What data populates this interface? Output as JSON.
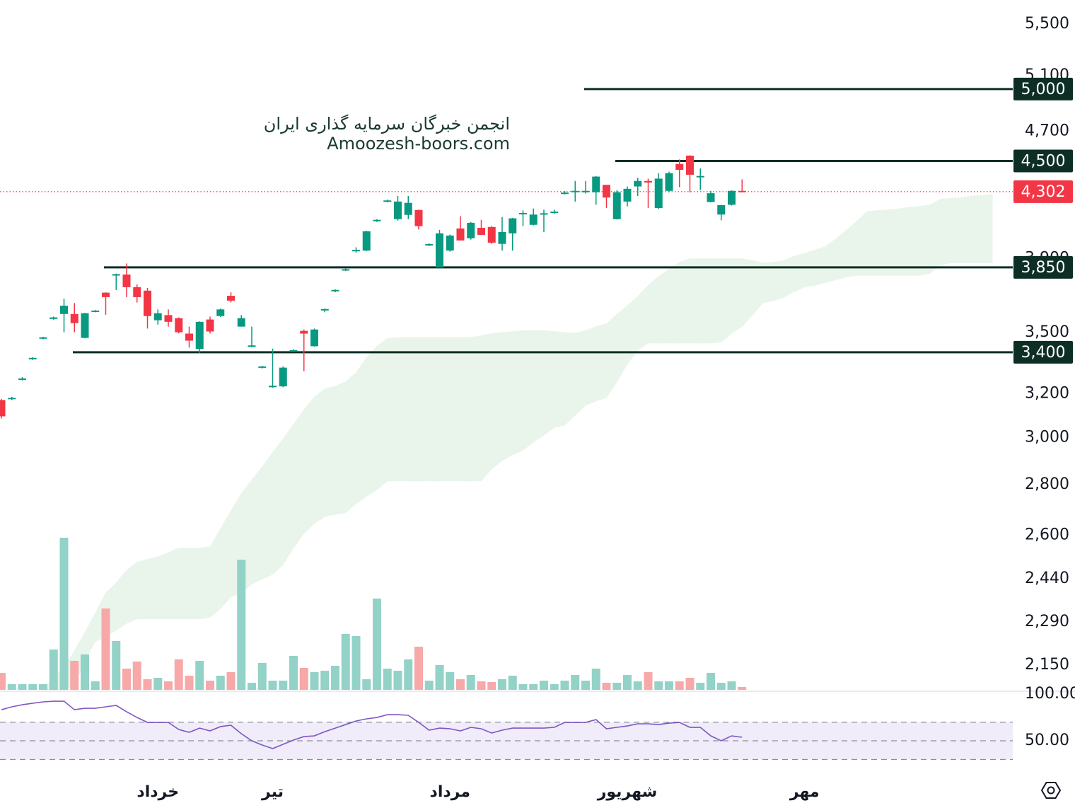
{
  "chart_data": {
    "type": "candlestick",
    "annotations": [
      "انجمن خبرگان سرمایه گذاری ایران",
      "Amoozesh-boors.com"
    ],
    "categories": [
      null,
      null,
      null,
      null,
      null,
      null,
      null,
      null,
      null,
      null,
      null,
      null,
      null,
      null,
      null,
      "خرداد",
      null,
      null,
      null,
      null,
      null,
      null,
      null,
      null,
      null,
      null,
      "تیر",
      null,
      null,
      null,
      null,
      null,
      null,
      null,
      null,
      null,
      null,
      null,
      null,
      null,
      null,
      null,
      null,
      "مرداد",
      null,
      null,
      null,
      null,
      null,
      null,
      null,
      null,
      null,
      null,
      null,
      null,
      null,
      null,
      null,
      null,
      "شهریور",
      null,
      null,
      null,
      null,
      null,
      null,
      null,
      null,
      null,
      null,
      null,
      null,
      null,
      null,
      null,
      null,
      "مهر",
      null,
      null,
      null,
      null,
      null,
      null,
      null,
      null,
      null,
      null,
      null,
      null,
      null,
      null,
      null,
      null,
      null,
      null
    ],
    "open": [
      3170,
      3175,
      3265,
      3365,
      3468,
      3570,
      3596,
      3596,
      3472,
      3608,
      3710,
      3805,
      3810,
      3740,
      3721,
      3563,
      3590,
      3574,
      3494,
      3416,
      3567,
      3585,
      3693,
      3530,
      3428,
      3324,
      3230,
      3234,
      3405,
      3508,
      3430,
      3615,
      3718,
      3834,
      3945,
      3946,
      4120,
      4240,
      4132,
      4158,
      4188,
      3978,
      3850,
      3946,
      4076,
      4018,
      4080,
      4085,
      3985,
      4047,
      4162,
      4098,
      4160,
      4172,
      4290,
      4300,
      4302,
      4298,
      4345,
      4132,
      4240,
      4335,
      4370,
      4200,
      4307,
      4480,
      4535,
      4396,
      4237,
      4160,
      4220,
      4307,
      null,
      null,
      null,
      null,
      null,
      null,
      null,
      null,
      null,
      null,
      null,
      null,
      null,
      null,
      null,
      null,
      null,
      null,
      null,
      null,
      null,
      null,
      null,
      null
    ],
    "high": [
      3175,
      3185,
      3278,
      3376,
      3478,
      3582,
      3678,
      3654,
      3602,
      3617,
      3712,
      3815,
      3872,
      3755,
      3736,
      3620,
      3620,
      3578,
      3530,
      3557,
      3582,
      3625,
      3712,
      3590,
      3530,
      3333,
      3418,
      3330,
      3415,
      3515,
      3520,
      3625,
      3728,
      3845,
      3965,
      4062,
      4132,
      4252,
      4275,
      4275,
      4190,
      3988,
      4068,
      4040,
      4150,
      4115,
      4128,
      4090,
      4145,
      4140,
      4185,
      4197,
      4190,
      4190,
      4305,
      4370,
      4370,
      4402,
      4345,
      4310,
      4335,
      4390,
      4385,
      4420,
      4430,
      4510,
      4538,
      4450,
      4307,
      4220,
      4310,
      4380,
      null,
      null,
      null,
      null,
      null,
      null,
      null,
      null,
      null,
      null,
      null,
      null,
      null,
      null,
      null,
      null,
      null,
      null,
      null,
      null,
      null,
      null,
      null,
      null
    ],
    "low": [
      3085,
      3170,
      3262,
      3362,
      3465,
      3566,
      3501,
      3501,
      3470,
      3605,
      3592,
      3725,
      3686,
      3657,
      3520,
      3540,
      3530,
      3495,
      3423,
      3394,
      3494,
      3580,
      3657,
      3530,
      3425,
      3320,
      3228,
      3230,
      3402,
      3307,
      3428,
      3605,
      3712,
      3830,
      3935,
      3943,
      4115,
      4235,
      4124,
      4132,
      4070,
      3972,
      3850,
      3940,
      4005,
      4010,
      4038,
      3985,
      3946,
      3946,
      4090,
      4095,
      4055,
      4165,
      4285,
      4240,
      4290,
      4220,
      4200,
      4130,
      4210,
      4275,
      4200,
      4195,
      4298,
      4330,
      4298,
      4312,
      4235,
      4125,
      4215,
      4298,
      null,
      null,
      null,
      null,
      null,
      null,
      null,
      null,
      null,
      null,
      null,
      null,
      null,
      null,
      null,
      null,
      null,
      null,
      null,
      null,
      null,
      null,
      null,
      null
    ],
    "close": [
      3095,
      3180,
      3272,
      3372,
      3475,
      3578,
      3640,
      3548,
      3600,
      3614,
      3686,
      3812,
      3740,
      3686,
      3585,
      3600,
      3555,
      3501,
      3458,
      3555,
      3505,
      3620,
      3667,
      3574,
      3434,
      3330,
      3237,
      3324,
      3410,
      3494,
      3515,
      3622,
      3725,
      3840,
      3950,
      4059,
      4128,
      4247,
      4240,
      4232,
      4090,
      3984,
      4047,
      4034,
      4005,
      4110,
      4038,
      3992,
      4055,
      4137,
      4170,
      4160,
      4168,
      4178,
      4296,
      4307,
      4307,
      4398,
      4265,
      4298,
      4320,
      4370,
      4360,
      4385,
      4420,
      4442,
      4410,
      4402,
      4292,
      4218,
      4307,
      4302,
      null,
      null,
      null,
      null,
      null,
      null,
      null,
      null,
      null,
      null,
      null,
      null,
      null,
      null,
      null,
      null,
      null,
      null,
      null,
      null,
      null,
      null,
      null,
      null
    ],
    "volume": [
      24,
      8,
      8,
      8,
      8,
      57,
      215,
      41,
      50,
      12,
      115,
      69,
      30,
      40,
      15,
      17,
      12,
      43,
      20,
      41,
      13,
      20,
      25,
      184,
      10,
      38,
      13,
      13,
      48,
      31,
      25,
      27,
      34,
      79,
      76,
      15,
      129,
      30,
      27,
      43,
      61,
      13,
      35,
      25,
      15,
      21,
      12,
      11,
      15,
      20,
      8,
      8,
      13,
      8,
      13,
      21,
      13,
      30,
      10,
      10,
      21,
      12,
      25,
      12,
      12,
      12,
      17,
      10,
      24,
      10,
      12,
      4,
      null,
      null,
      null,
      null,
      null,
      null,
      null,
      null,
      null,
      null,
      null,
      null,
      null,
      null,
      null,
      null,
      null,
      null,
      null,
      null,
      null,
      null,
      null,
      null
    ],
    "cloud_upper": [
      null,
      null,
      null,
      null,
      2073,
      2110,
      2140,
      2195,
      2255,
      2320,
      2390,
      2425,
      2470,
      2500,
      2510,
      2520,
      2535,
      2552,
      2552,
      2552,
      2557,
      2625,
      2695,
      2765,
      2820,
      2875,
      2935,
      2995,
      3059,
      3125,
      3185,
      3222,
      3235,
      3256,
      3300,
      3375,
      3430,
      3470,
      3475,
      3475,
      3475,
      3475,
      3475,
      3475,
      3475,
      3475,
      3483,
      3495,
      3500,
      3505,
      3510,
      3510,
      3510,
      3505,
      3500,
      3497,
      3510,
      3530,
      3545,
      3595,
      3640,
      3690,
      3750,
      3800,
      3840,
      3880,
      3900,
      3900,
      3900,
      3900,
      3900,
      3900,
      3890,
      3875,
      3880,
      3890,
      3915,
      3930,
      3950,
      3970,
      4015,
      4065,
      4120,
      4180,
      4185,
      4190,
      4195,
      4205,
      4210,
      4220,
      4255,
      4260,
      4265,
      4275,
      4280,
      4285
    ],
    "cloud_lower": [
      null,
      null,
      null,
      null,
      2073,
      2073,
      2073,
      2085,
      2165,
      2225,
      2241,
      2262,
      2285,
      2300,
      2300,
      2300,
      2300,
      2300,
      2300,
      2300,
      2305,
      2335,
      2375,
      2390,
      2420,
      2438,
      2455,
      2490,
      2552,
      2607,
      2645,
      2672,
      2680,
      2687,
      2723,
      2752,
      2780,
      2815,
      2815,
      2815,
      2815,
      2815,
      2815,
      2815,
      2815,
      2815,
      2815,
      2865,
      2900,
      2925,
      2945,
      2980,
      3010,
      3045,
      3055,
      3100,
      3145,
      3165,
      3180,
      3255,
      3340,
      3410,
      3445,
      3445,
      3445,
      3445,
      3445,
      3445,
      3445,
      3450,
      3495,
      3530,
      3590,
      3655,
      3665,
      3685,
      3715,
      3740,
      3750,
      3765,
      3780,
      3795,
      3805,
      3805,
      3805,
      3805,
      3805,
      3805,
      3805,
      3815,
      3863,
      3875,
      3875,
      3875,
      3875,
      3875
    ],
    "up_color": "#089981",
    "down_color": "#f23645",
    "volume_up_color": "#93d2c7",
    "volume_down_color": "#f7a8a8",
    "cloud_color": "#e9f5ea",
    "log_scale": true,
    "ylim": [
      2073,
      5697
    ],
    "yticks": [
      {
        "value": 2150,
        "label": "2,150"
      },
      {
        "value": 2290,
        "label": "2,290"
      },
      {
        "value": 2440,
        "label": "2,440"
      },
      {
        "value": 2600,
        "label": "2,600"
      },
      {
        "value": 2800,
        "label": "2,800"
      },
      {
        "value": 3000,
        "label": "3,000"
      },
      {
        "value": 3200,
        "label": "3,200"
      },
      {
        "value": 3500,
        "label": "3,500"
      },
      {
        "value": 3900,
        "label": "3,900"
      },
      {
        "value": 4700,
        "label": "4,700"
      },
      {
        "value": 5100,
        "label": "5,100"
      },
      {
        "value": 5500,
        "label": "5,500"
      }
    ],
    "levels": [
      {
        "value": 5000,
        "label": "5,000"
      },
      {
        "value": 4500,
        "label": "4,500"
      },
      {
        "value": 3850,
        "label": "3,850"
      },
      {
        "value": 3400,
        "label": "3,400"
      }
    ],
    "level_color": "#0d2e25",
    "last_price": {
      "value": 4302,
      "label": "4,302"
    },
    "rsi": {
      "values": [
        83.3,
        86.4,
        88.6,
        90.2,
        91.7,
        92.4,
        92.4,
        83.3,
        84.8,
        84.8,
        86.4,
        87.9,
        81.1,
        75,
        69.7,
        69.7,
        69.7,
        62.1,
        59.1,
        63.6,
        60.6,
        65.2,
        66.7,
        57.6,
        50,
        45.5,
        41.7,
        46.2,
        50.8,
        54.5,
        55.3,
        59.8,
        63.6,
        67.4,
        71.2,
        73.5,
        75,
        78,
        78,
        77.3,
        69.7,
        61.4,
        63.6,
        62.9,
        60.6,
        64.4,
        62.9,
        58.3,
        61.4,
        63.6,
        63.6,
        63.6,
        63.6,
        64.4,
        69.7,
        69.7,
        69.7,
        72.7,
        62.9,
        64.4,
        65.9,
        68.2,
        68.2,
        67.4,
        68.9,
        69.7,
        64.4,
        64.4,
        55.3,
        50,
        55.3,
        53.8,
        null,
        null,
        null,
        null,
        null,
        null,
        null,
        null,
        null,
        null,
        null,
        null,
        null,
        null,
        null,
        null,
        null,
        null,
        null,
        null,
        null,
        null,
        null,
        null
      ],
      "color": "#7e57c2",
      "band_color": "#f0ecf9",
      "ylim": [
        28.8,
        102.3
      ],
      "yticks": [
        {
          "value": 100,
          "label": "100.00"
        },
        {
          "value": 50,
          "label": "50.00"
        }
      ],
      "levels": [
        70,
        50,
        30
      ]
    }
  }
}
